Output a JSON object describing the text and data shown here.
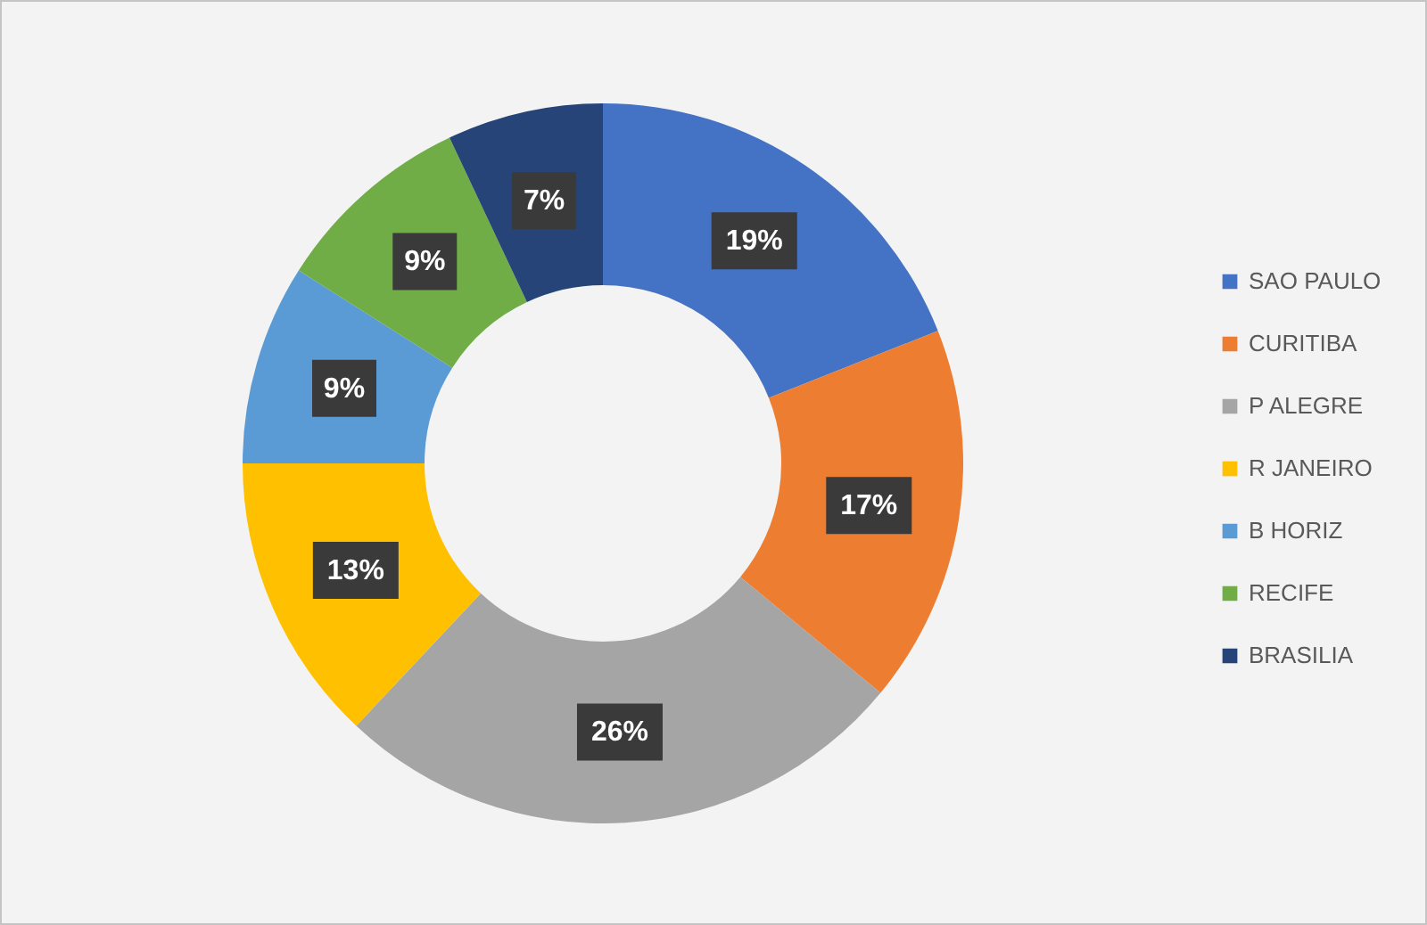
{
  "chart_data": {
    "type": "donut",
    "categories": [
      "SAO PAULO",
      "CURITIBA",
      "P ALEGRE",
      "R JANEIRO",
      "B HORIZ",
      "RECIFE",
      "BRASILIA"
    ],
    "values": [
      19,
      17,
      26,
      13,
      9,
      9,
      7
    ],
    "colors": [
      "#4472c4",
      "#ed7d31",
      "#a5a5a5",
      "#ffc000",
      "#5b9bd5",
      "#70ad47",
      "#264478"
    ],
    "value_labels": [
      "19%",
      "17%",
      "26%",
      "13%",
      "9%",
      "9%",
      "7%"
    ],
    "legend": "right"
  }
}
